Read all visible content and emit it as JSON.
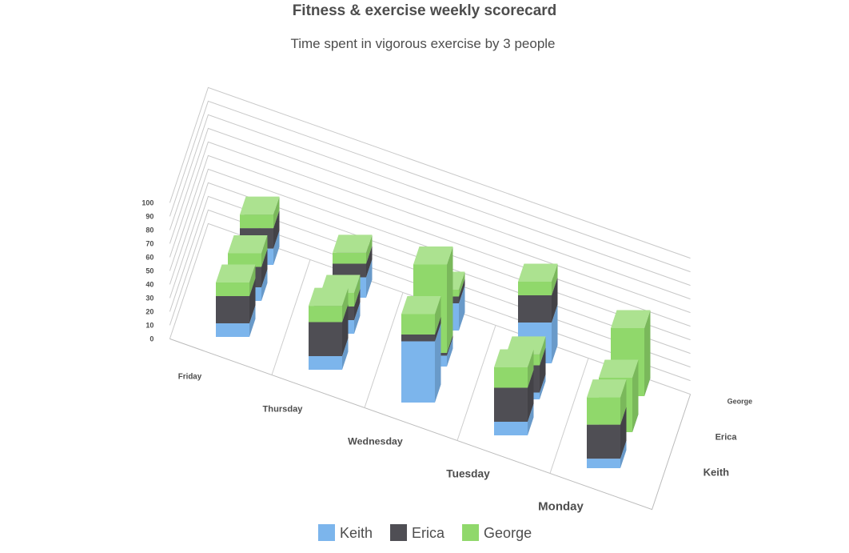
{
  "chart_data": {
    "type": "column3d",
    "title": "Fitness & exercise weekly scorecard",
    "subtitle": "Time spent in vigorous exercise by 3 people",
    "categories": [
      "Monday",
      "Tuesday",
      "Wednesday",
      "Thursday",
      "Friday"
    ],
    "zcategories": [
      "Keith",
      "Erica",
      "George"
    ],
    "ylim": [
      0,
      100
    ],
    "yticks": [
      0,
      10,
      20,
      30,
      40,
      50,
      60,
      70,
      80,
      90,
      100
    ],
    "grid": true,
    "series": [
      {
        "name": "Keith",
        "color": "#7cb5ec",
        "values": [
          [
            7,
            10,
            45,
            10,
            10
          ],
          [
            0,
            5,
            8,
            10,
            10
          ],
          [
            0,
            30,
            20,
            15,
            12
          ]
        ]
      },
      {
        "name": "Erica",
        "color": "#4f4e54",
        "values": [
          [
            25,
            25,
            5,
            25,
            20
          ],
          [
            0,
            20,
            2,
            10,
            15
          ],
          [
            0,
            20,
            5,
            10,
            15
          ]
        ]
      },
      {
        "name": "George",
        "color": "#90d86b",
        "values": [
          [
            20,
            15,
            15,
            12,
            10
          ],
          [
            40,
            8,
            65,
            10,
            10
          ],
          [
            50,
            10,
            5,
            8,
            10
          ]
        ]
      }
    ]
  }
}
